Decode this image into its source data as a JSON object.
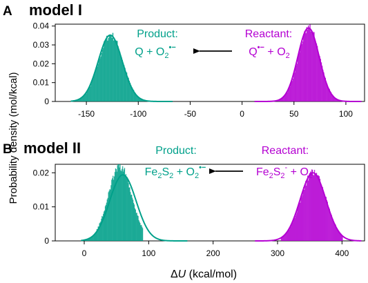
{
  "chart_data": [
    {
      "type": "bar",
      "panel_letter": "A",
      "panel_title": "model I",
      "ylabel": "Probability density (mol/kcal)",
      "xlabel": "",
      "xlim": [
        -180,
        118
      ],
      "ylim": [
        0,
        0.041
      ],
      "xticks": [
        -150,
        -100,
        -50,
        0,
        50,
        100
      ],
      "yticks": [
        0,
        0.01,
        0.02,
        0.03,
        0.04
      ],
      "ytick_labels": [
        "0",
        "0.01",
        "0.02",
        "0.03",
        "0.04"
      ],
      "arrow_direction": "right-to-left",
      "series": [
        {
          "name": "Product",
          "formula": "Q + O₂•−",
          "color": "#00a08a",
          "mean": -127,
          "sd": 11.6,
          "peak": 0.0352,
          "hist_range": [
            -165,
            -90
          ],
          "line_range": [
            -165,
            -67
          ]
        },
        {
          "name": "Reactant",
          "formula": "Q•− + O₂",
          "color": "#b400d2",
          "mean": 64,
          "sd": 10.3,
          "peak": 0.039,
          "hist_range": [
            30,
            100
          ],
          "line_range": [
            12,
            115
          ]
        }
      ],
      "labels": {
        "product_title": "Product:",
        "product_formula": {
          "base": "Q + O",
          "sub": "2",
          "sup": "•−"
        },
        "reactant_title": "Reactant:",
        "reactant_formula": {
          "base": "Q",
          "sup": "•−",
          "tail": " + O",
          "sub": "2"
        }
      }
    },
    {
      "type": "bar",
      "panel_letter": "B",
      "panel_title": "model II",
      "ylabel": "Probability density (mol/kcal)",
      "xlabel": "ΔU (kcal/mol)",
      "xlim": [
        -45,
        435
      ],
      "ylim": [
        0,
        0.0225
      ],
      "xticks": [
        0,
        100,
        200,
        300,
        400
      ],
      "yticks": [
        0,
        0.01,
        0.02
      ],
      "ytick_labels": [
        "0",
        "0.01",
        "0.02"
      ],
      "arrow_direction": "right-to-left",
      "series": [
        {
          "name": "Product",
          "formula": "Fe₂S₂ + O₂•−",
          "color": "#00a08a",
          "mean": 60,
          "sd": 20.5,
          "peak": 0.0194,
          "hist_mean": 55,
          "hist_sd": 18.5,
          "hist_peak": 0.0218,
          "hist_range": [
            0,
            90
          ],
          "line_range": [
            -5,
            160
          ]
        },
        {
          "name": "Reactant",
          "formula": "Fe₂S₂⁻ + O₂",
          "color": "#b400d2",
          "mean": 355,
          "sd": 20,
          "peak": 0.02,
          "hist_range": [
            305,
            400
          ],
          "line_range": [
            265,
            430
          ]
        }
      ],
      "labels": {
        "product_title": "Product:",
        "product_formula": {
          "base": "Fe",
          "sub1": "2",
          "mid": "S",
          "sub2": "2",
          "tail": " + O",
          "sub3": "2",
          "sup": "•−"
        },
        "reactant_title": "Reactant:",
        "reactant_formula": {
          "base": "Fe",
          "sub1": "2",
          "mid": "S",
          "sub2": "2",
          "sup": "-",
          "tail": " + O",
          "sub3": "2"
        }
      }
    }
  ],
  "shared_ylabel": "Probability density (mol/kcal)",
  "x_axis_label": {
    "delta": "Δ",
    "var": "U",
    "units": " (kcal/mol)"
  }
}
